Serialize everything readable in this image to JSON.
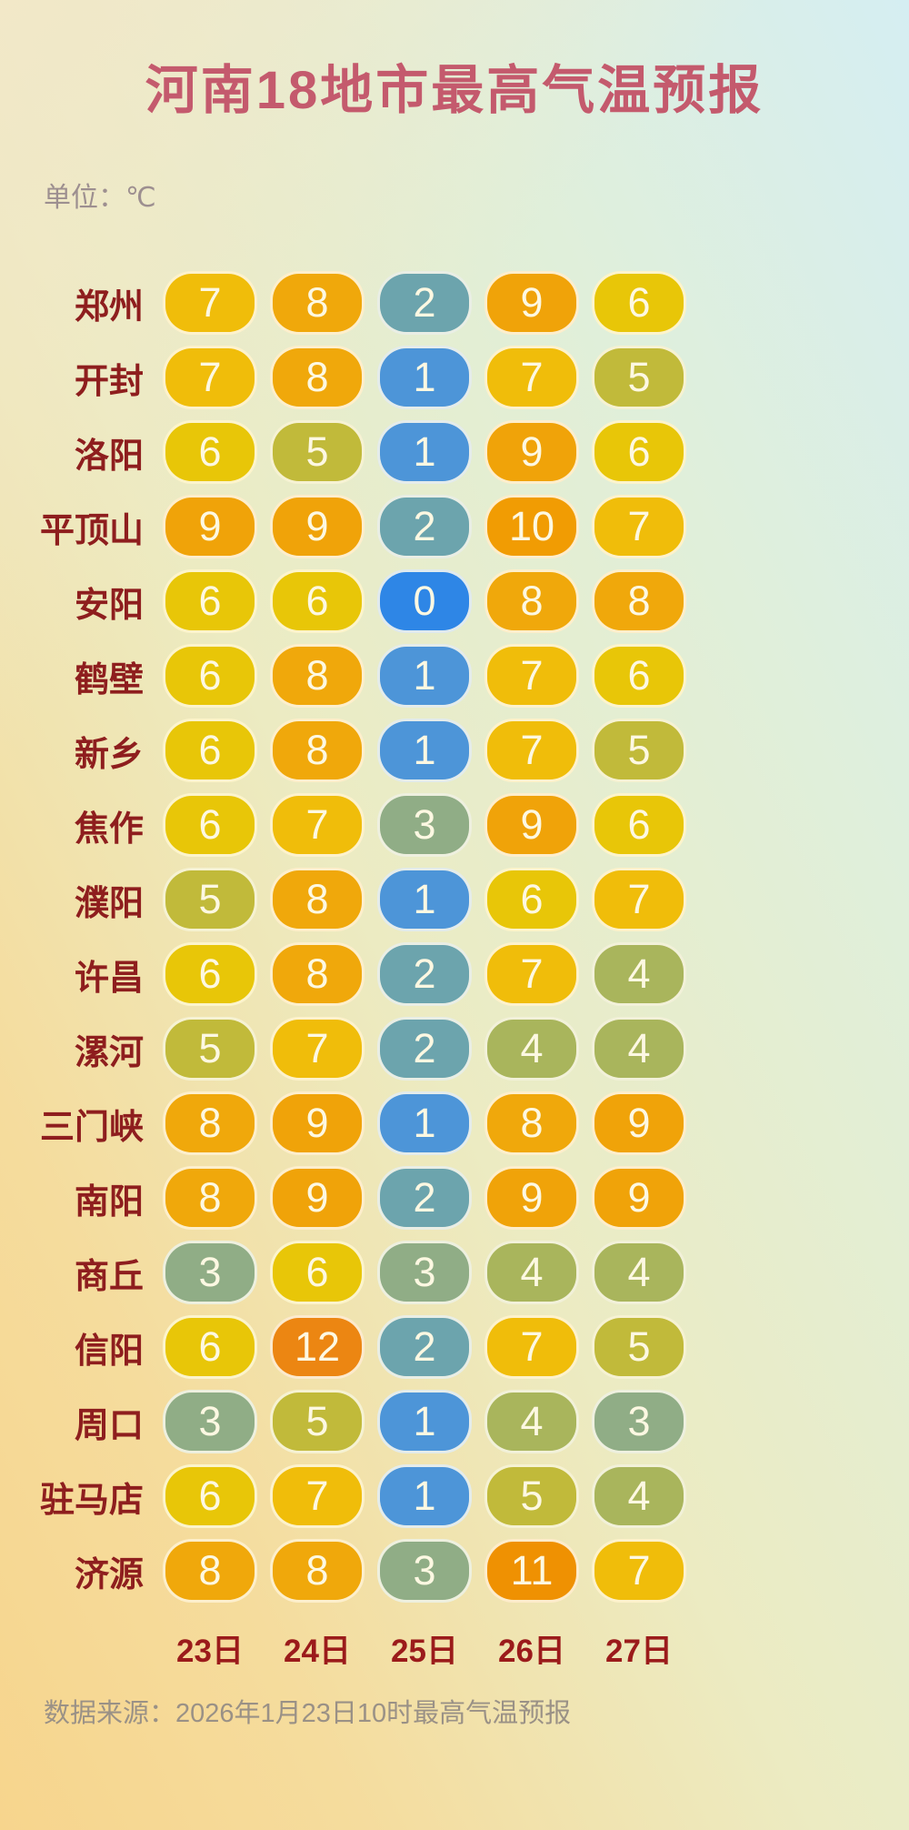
{
  "page": {
    "title": "河南18地市最高气温预报",
    "unit_label": "单位：℃",
    "footer": "数据来源：2026年1月23日10时最高气温预报"
  },
  "chart_data": {
    "type": "heatmap",
    "title": "河南18地市最高气温预报",
    "unit": "℃",
    "columns": [
      "23日",
      "24日",
      "25日",
      "26日",
      "27日"
    ],
    "rows": [
      {
        "city": "郑州",
        "temps": [
          7,
          8,
          2,
          9,
          6
        ]
      },
      {
        "city": "开封",
        "temps": [
          7,
          8,
          1,
          7,
          5
        ]
      },
      {
        "city": "洛阳",
        "temps": [
          6,
          5,
          1,
          9,
          6
        ]
      },
      {
        "city": "平顶山",
        "temps": [
          9,
          9,
          2,
          10,
          7
        ]
      },
      {
        "city": "安阳",
        "temps": [
          6,
          6,
          0,
          8,
          8
        ]
      },
      {
        "city": "鹤壁",
        "temps": [
          6,
          8,
          1,
          7,
          6
        ]
      },
      {
        "city": "新乡",
        "temps": [
          6,
          8,
          1,
          7,
          5
        ]
      },
      {
        "city": "焦作",
        "temps": [
          6,
          7,
          3,
          9,
          6
        ]
      },
      {
        "city": "濮阳",
        "temps": [
          5,
          8,
          1,
          6,
          7
        ]
      },
      {
        "city": "许昌",
        "temps": [
          6,
          8,
          2,
          7,
          4
        ]
      },
      {
        "city": "漯河",
        "temps": [
          5,
          7,
          2,
          4,
          4
        ]
      },
      {
        "city": "三门峡",
        "temps": [
          8,
          9,
          1,
          8,
          9
        ]
      },
      {
        "city": "南阳",
        "temps": [
          8,
          9,
          2,
          9,
          9
        ]
      },
      {
        "city": "商丘",
        "temps": [
          3,
          6,
          3,
          4,
          4
        ]
      },
      {
        "city": "信阳",
        "temps": [
          6,
          12,
          2,
          7,
          5
        ]
      },
      {
        "city": "周口",
        "temps": [
          3,
          5,
          1,
          4,
          3
        ]
      },
      {
        "city": "驻马店",
        "temps": [
          6,
          7,
          1,
          5,
          4
        ]
      },
      {
        "city": "济源",
        "temps": [
          8,
          8,
          3,
          11,
          7
        ]
      }
    ],
    "color_scale": {
      "0": "#2e86e6",
      "1": "#4d95d8",
      "2": "#6ca4ad",
      "3": "#90ad86",
      "4": "#a9b55c",
      "5": "#c1ba3a",
      "6": "#e8c608",
      "7": "#f0bd0a",
      "8": "#f0a80b",
      "9": "#f0a309",
      "10": "#f19c03",
      "11": "#ef9102",
      "12": "#ec8612"
    }
  },
  "colors": {
    "title": "#c45a6d",
    "city_label": "#8e1e1e",
    "date_label": "#9b1b1b",
    "unit_label": "#9d8f90",
    "footer_text": "#9a9186",
    "pill_text": "#fdf8e2",
    "pill_border": "#fffcee"
  }
}
